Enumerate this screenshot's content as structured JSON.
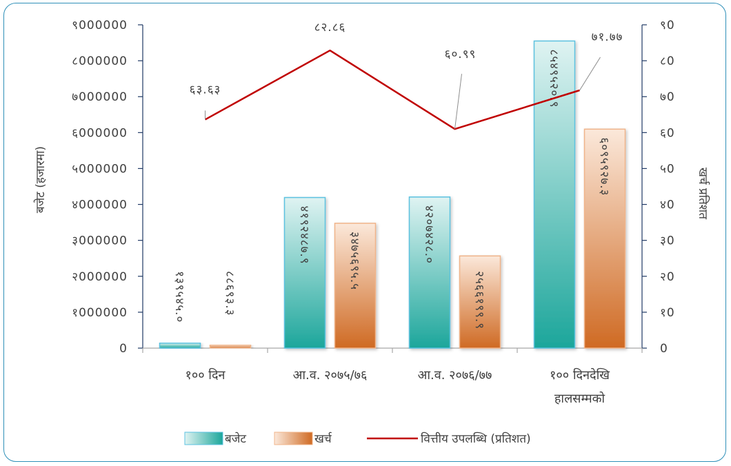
{
  "chart_data": {
    "type": "bar",
    "categories": [
      "१०० दिन",
      "आ.व. २०७५/७६",
      "आ.व. २०७६/७७",
      "१०० दिनदेखि हालसम्मको"
    ],
    "category_lines": [
      [
        "१०० दिन"
      ],
      [
        "आ.व. २०७५/७६"
      ],
      [
        "आ.व. २०७६/७७"
      ],
      [
        "१०० दिनदेखि",
        "हालसम्मको"
      ]
    ],
    "series": [
      {
        "name": "बजेट",
        "axis": "left",
        "values": [
          139545.0,
          4192487.9,
          4207428.0,
          8549520.9
        ],
        "labels": [
          "१३९५४५.०",
          "४१९२४८७.९",
          "४२०७४२८.०",
          "८५४९५२०.९"
        ],
        "color_top": "#dff3f2",
        "color_bottom": "#1ca69b",
        "border": "#5bc2e0"
      },
      {
        "name": "खर्च",
        "axis": "left",
        "values": [
          88693.3,
          3475695.5,
          2566199.9,
          6095927.3
        ],
        "labels": [
          "८८६९३.३",
          "३४७५६९५.५",
          "२५६६१९९.९",
          "६०९५९२७.३"
        ],
        "color_top": "#fbe8da",
        "color_bottom": "#cf6a23",
        "border": "#f0b48a"
      },
      {
        "name": "वित्तीय उपलब्धि (प्रतिशत)",
        "type": "line",
        "axis": "right",
        "values": [
          63.63,
          82.86,
          60.99,
          71.77
        ],
        "labels": [
          "६३.६३",
          "८२.८६",
          "६०.९९",
          "७१.७७"
        ],
        "color": "#c00000"
      }
    ],
    "y_left": {
      "label": "बजेट (हजारमा)",
      "range": [
        0,
        9000000
      ],
      "ticks": [
        "0",
        "१000000",
        "२000000",
        "३000000",
        "४000000",
        "५000000",
        "६000000",
        "७000000",
        "८000000",
        "९000000"
      ]
    },
    "y_right": {
      "label": "खर्च प्रतिशत",
      "range": [
        0,
        90
      ],
      "ticks": [
        "0",
        "१0",
        "२0",
        "३0",
        "४0",
        "५0",
        "६0",
        "७0",
        "८0",
        "९0"
      ]
    },
    "legend_position": "bottom",
    "grid": false,
    "axis_color": "#1f3864"
  }
}
